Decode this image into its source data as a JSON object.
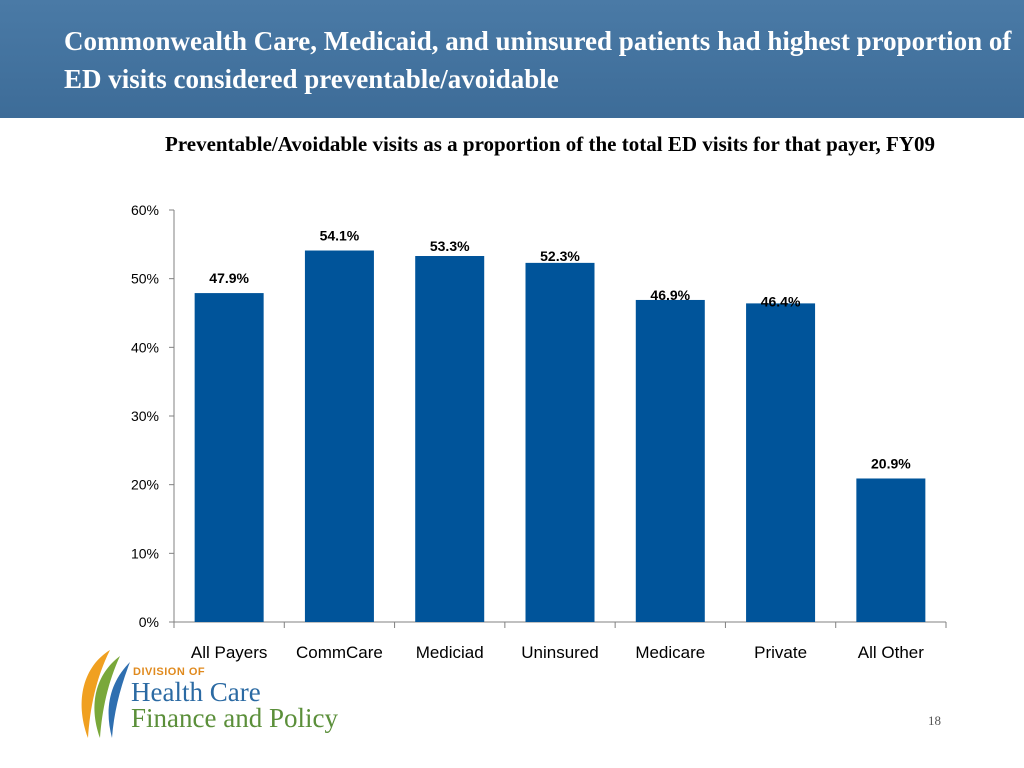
{
  "slide": {
    "title": "Commonwealth Care, Medicaid, and uninsured patients had highest proportion of ED visits considered preventable/avoidable",
    "page_number": "18"
  },
  "organization": {
    "division_label": "DIVISION OF",
    "name_line1": "Health Care",
    "name_line2": "Finance and Policy"
  },
  "chart_data": {
    "type": "bar",
    "title": "Preventable/Avoidable visits as a proportion of the total ED visits for that payer, FY09",
    "categories": [
      "All Payers",
      "CommCare",
      "Mediciad",
      "Uninsured",
      "Medicare",
      "Private",
      "All Other"
    ],
    "values": [
      47.9,
      54.1,
      53.3,
      52.3,
      46.9,
      46.4,
      20.9
    ],
    "value_labels": [
      "47.9%",
      "54.1%",
      "53.3%",
      "52.3%",
      "46.9%",
      "46.4%",
      "20.9%"
    ],
    "y_ticks": [
      "0%",
      "10%",
      "20%",
      "30%",
      "40%",
      "50%",
      "60%"
    ],
    "ylim": [
      0,
      60
    ],
    "xlabel": "",
    "ylabel": "",
    "grid": false,
    "bar_color": "#00549a"
  }
}
